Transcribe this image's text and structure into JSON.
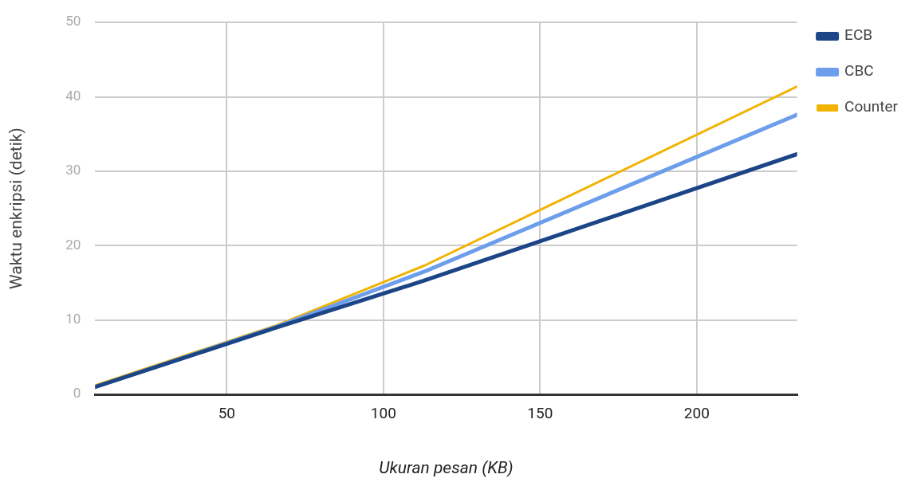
{
  "chart_data": {
    "type": "line",
    "xlabel": "Ukuran pesan (KB)",
    "ylabel": "Waktu enkripsi (detik)",
    "x": [
      8,
      66,
      113,
      232
    ],
    "series": [
      {
        "name": "ECB",
        "color": "#1c4587",
        "values": [
          1.0,
          9.0,
          15.3,
          32.3
        ]
      },
      {
        "name": "CBC",
        "color": "#6d9eeb",
        "values": [
          1.0,
          9.1,
          16.5,
          37.6
        ]
      },
      {
        "name": "Counter",
        "color": "#f1b300",
        "values": [
          1.2,
          9.3,
          17.3,
          41.4
        ]
      }
    ],
    "xlim": [
      8,
      232
    ],
    "xticks": [
      50,
      100,
      150,
      200
    ],
    "ylim": [
      0,
      50
    ],
    "yticks": [
      0,
      10,
      20,
      30,
      40,
      50
    ],
    "grid": true,
    "legend": "top right",
    "marker": "none",
    "line_style": "solid"
  }
}
